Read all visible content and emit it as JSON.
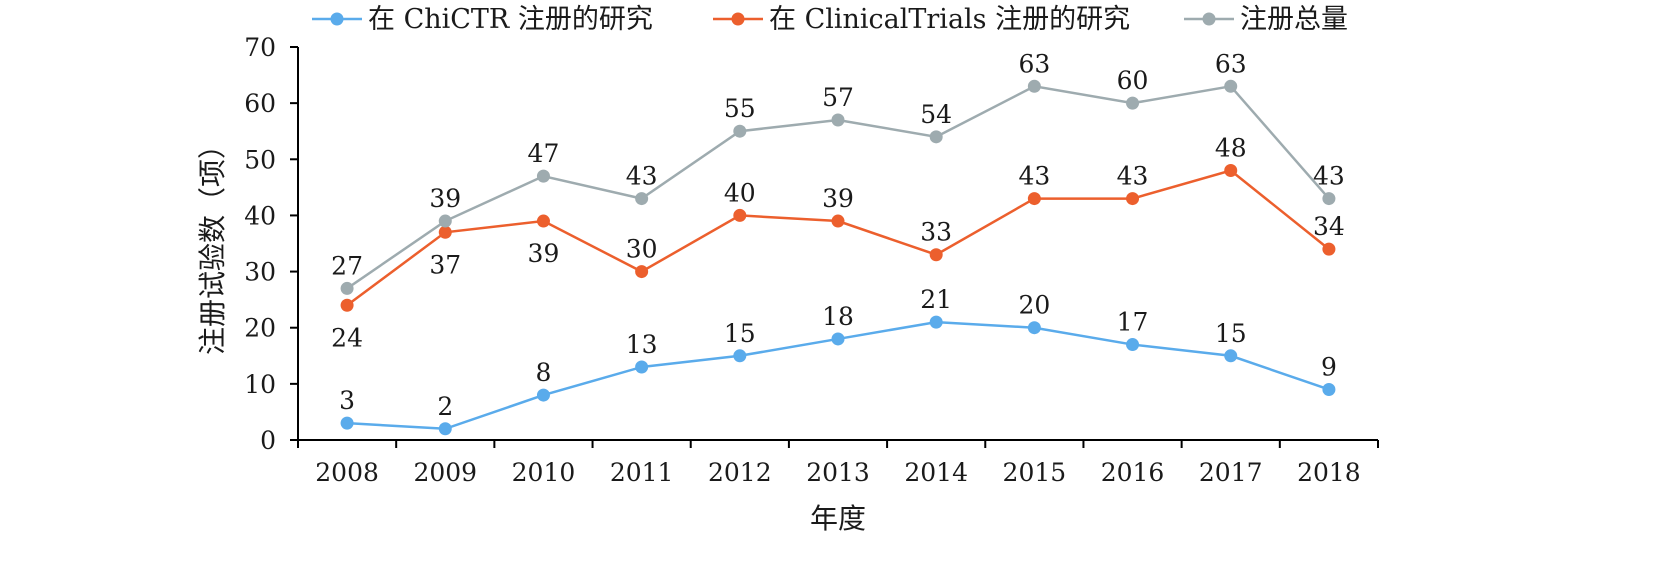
{
  "chart_data": {
    "type": "line",
    "title": "",
    "xlabel": "年度",
    "ylabel": "注册试验数（项）",
    "categories": [
      "2008",
      "2009",
      "2010",
      "2011",
      "2012",
      "2013",
      "2014",
      "2015",
      "2016",
      "2017",
      "2018"
    ],
    "ylim": [
      0,
      70
    ],
    "yticks": [
      0,
      10,
      20,
      30,
      40,
      50,
      60,
      70
    ],
    "grid": false,
    "legend_position": "top",
    "series": [
      {
        "name": "在 ChiCTR 注册的研究",
        "color": "#5aabeb",
        "values": [
          3,
          2,
          8,
          13,
          15,
          18,
          21,
          20,
          17,
          15,
          9
        ]
      },
      {
        "name": "在 ClinicalTrials 注册的研究",
        "color": "#ec5f2d",
        "values": [
          24,
          37,
          39,
          30,
          40,
          39,
          33,
          43,
          43,
          48,
          34
        ]
      },
      {
        "name": "注册总量",
        "color": "#9eabaf",
        "values": [
          27,
          39,
          47,
          43,
          55,
          57,
          54,
          63,
          60,
          63,
          43
        ]
      }
    ],
    "data_labels": [
      {
        "series": 0,
        "above": [
          true,
          true,
          true,
          true,
          true,
          true,
          true,
          true,
          true,
          true,
          true
        ]
      },
      {
        "series": 1,
        "above": [
          false,
          false,
          false,
          true,
          true,
          true,
          true,
          true,
          true,
          true,
          true
        ]
      },
      {
        "series": 2,
        "above": [
          true,
          true,
          true,
          true,
          true,
          true,
          true,
          true,
          true,
          true,
          true
        ]
      }
    ]
  }
}
